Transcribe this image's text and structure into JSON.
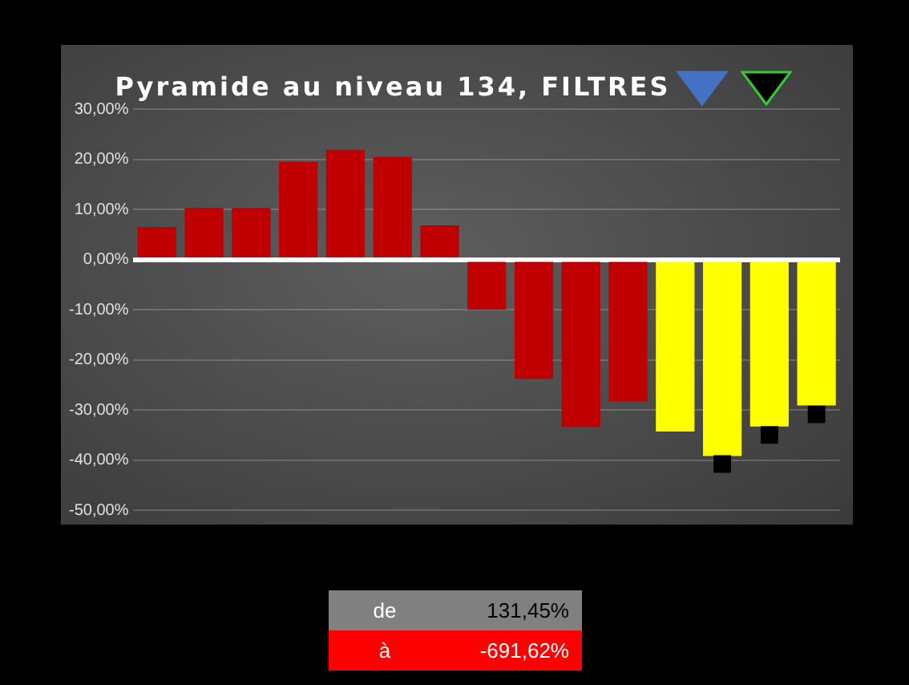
{
  "chart_data": {
    "type": "bar",
    "title": "Pyramide au niveau 134, FILTRES",
    "categories": [
      null,
      null,
      null,
      null,
      null,
      null,
      null,
      null,
      null,
      null,
      null,
      null,
      null,
      null,
      null
    ],
    "series": [
      {
        "colors": [
          "#c00000",
          "#c00000",
          "#c00000",
          "#c00000",
          "#c00000",
          "#c00000",
          "#c00000",
          "#c00000",
          "#c00000",
          "#c00000",
          "#c00000",
          "#ffff00",
          "#ffff00",
          "#ffff00",
          "#ffff00"
        ],
        "values": [
          6.5,
          10.3,
          10.3,
          19.5,
          21.9,
          20.5,
          6.8,
          -10.0,
          -23.8,
          -33.4,
          -28.3,
          -34.3,
          -39.2,
          -33.3,
          -29.1
        ]
      },
      {
        "type": "scatter",
        "color": "#000000",
        "marker": "square",
        "values": [
          null,
          null,
          null,
          null,
          null,
          null,
          null,
          null,
          null,
          null,
          null,
          null,
          -40.8,
          -35.0,
          -30.9
        ]
      }
    ],
    "ylim": [
      -50,
      30
    ],
    "yticks": [
      {
        "value": 30,
        "label": "30,00%"
      },
      {
        "value": 20,
        "label": "20,00%"
      },
      {
        "value": 10,
        "label": "10,00%"
      },
      {
        "value": 0,
        "label": "0,00%"
      },
      {
        "value": -10,
        "label": "-10,00%"
      },
      {
        "value": -20,
        "label": "-20,00%"
      },
      {
        "value": -30,
        "label": "-30,00%"
      },
      {
        "value": -40,
        "label": "-40,00%"
      },
      {
        "value": -50,
        "label": "-50,00%"
      }
    ],
    "grid": "y",
    "legend": false,
    "tick_labels": "y",
    "annotations": [
      "de",
      "131,45%",
      "à",
      "-691,62%"
    ]
  }
}
